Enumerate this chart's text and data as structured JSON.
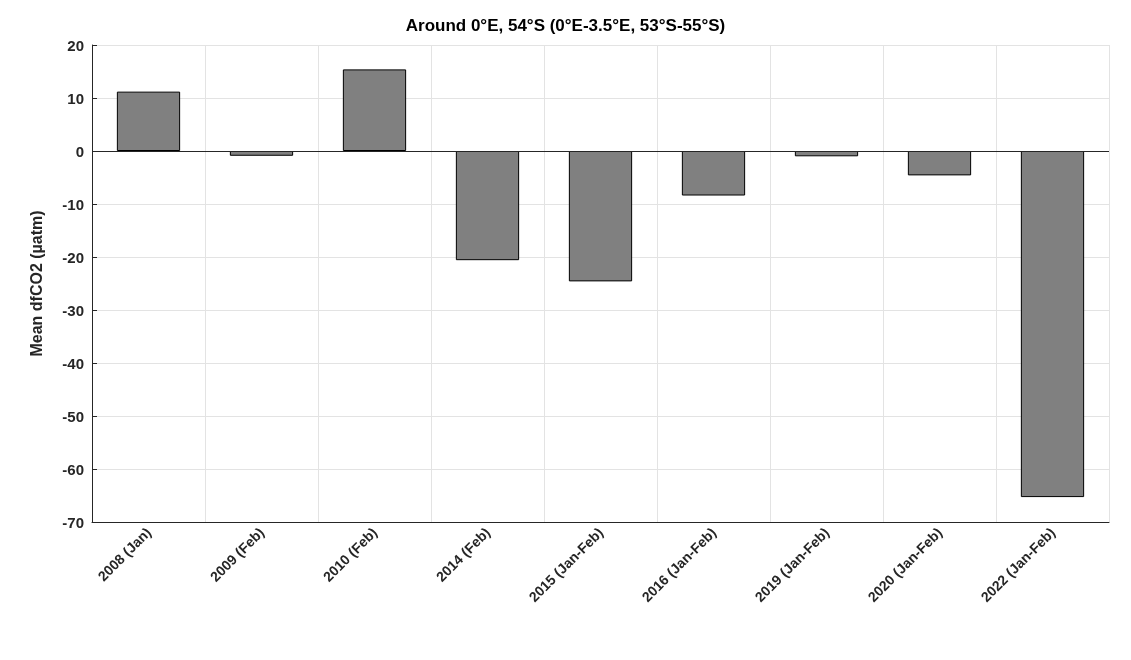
{
  "chart_data": {
    "type": "bar",
    "title": "Around 0°E, 54°S (0°E-3.5°E, 53°S-55°S)",
    "ylabel": "Mean dfCO2 (µatm)",
    "categories": [
      "2008 (Jan)",
      "2009 (Feb)",
      "2010 (Feb)",
      "2014 (Feb)",
      "2015 (Jan-Feb)",
      "2016 (Jan-Feb)",
      "2019 (Jan-Feb)",
      "2020 (Jan-Feb)",
      "2022 (Jan-Feb)"
    ],
    "values": [
      11.2,
      -0.9,
      15.4,
      -20.6,
      -24.6,
      -8.4,
      -1.0,
      -4.6,
      -65.3
    ],
    "color": "#808080",
    "ylim": [
      -70,
      20
    ],
    "yticks": [
      -70,
      -60,
      -50,
      -40,
      -30,
      -20,
      -10,
      0,
      10,
      20
    ],
    "grid": true,
    "ref_lines": [
      {
        "axis": "y",
        "value": 0,
        "color": "#262626"
      }
    ]
  }
}
